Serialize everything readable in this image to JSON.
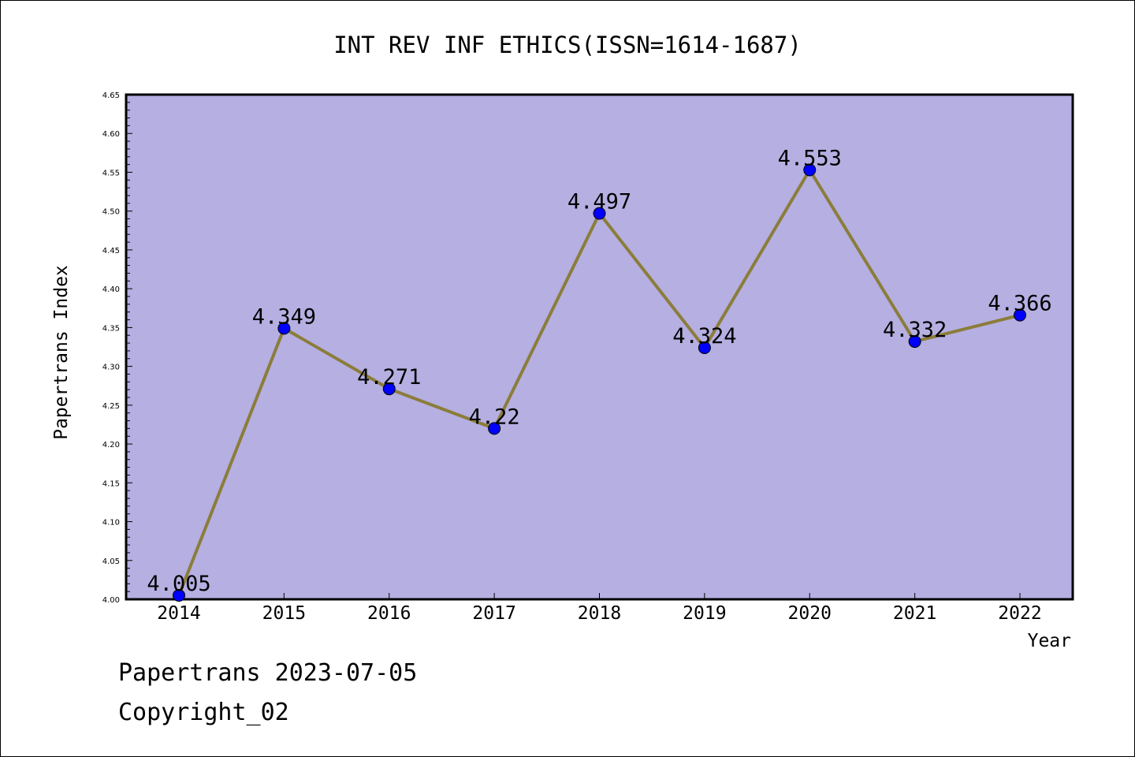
{
  "chart_data": {
    "type": "line",
    "title": "INT REV INF ETHICS(ISSN=1614-1687)",
    "xlabel": "Year",
    "ylabel": "Papertrans Index",
    "categories": [
      "2014",
      "2015",
      "2016",
      "2017",
      "2018",
      "2019",
      "2020",
      "2021",
      "2022"
    ],
    "values": [
      4.005,
      4.349,
      4.271,
      4.22,
      4.497,
      4.324,
      4.553,
      4.332,
      4.366
    ],
    "value_labels": [
      "4.005",
      "4.349",
      "4.271",
      "4.22",
      "4.497",
      "4.324",
      "4.553",
      "4.332",
      "4.366"
    ],
    "ylim": [
      4.0,
      4.65
    ],
    "y_ticks": [
      "4.00",
      "4.05",
      "4.10",
      "4.15",
      "4.20",
      "4.25",
      "4.30",
      "4.35",
      "4.40",
      "4.45",
      "4.50",
      "4.55",
      "4.60",
      "4.65"
    ],
    "y_minor_step": 0.01,
    "grid": false,
    "legend": "none",
    "colors": {
      "plot_background": "#b5afe2",
      "line": "#8b7d3a",
      "marker": "#0000ff",
      "axis": "#000000"
    }
  },
  "footer": {
    "line1": "Papertrans 2023-07-05",
    "line2": "Copyright_02"
  }
}
